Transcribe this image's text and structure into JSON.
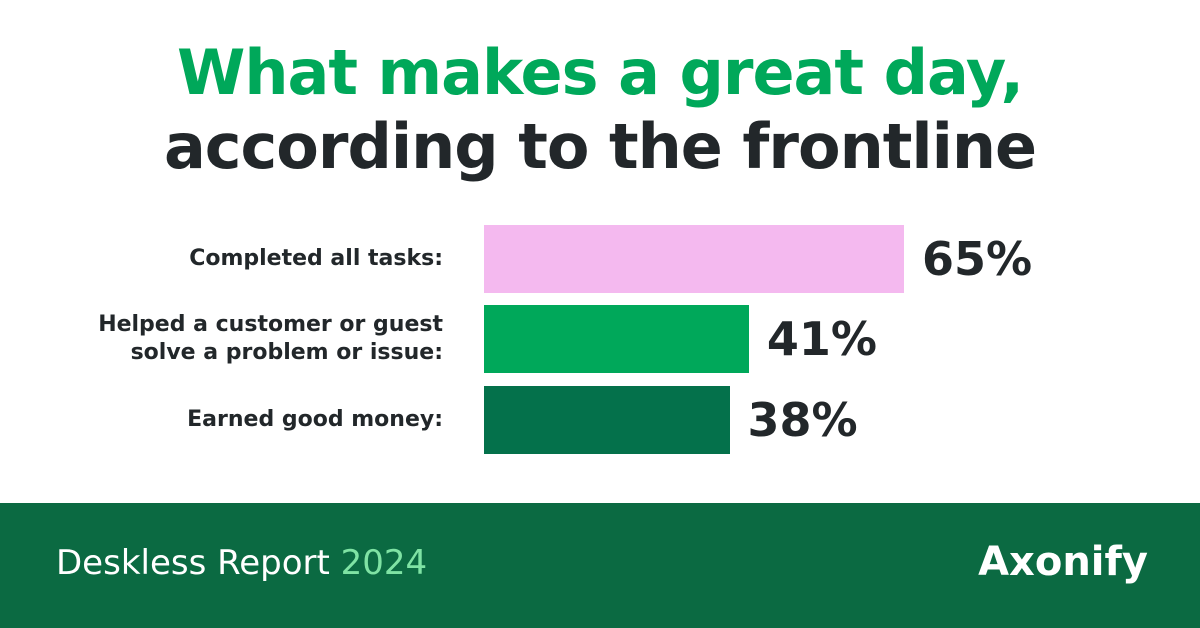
{
  "chart_data": {
    "type": "bar",
    "title": "What makes a great day,",
    "subtitle": "according to the frontline",
    "categories": [
      "Completed all tasks:",
      "Helped a customer or guest solve a problem or issue:",
      "Earned good money:"
    ],
    "values": [
      65,
      41,
      38
    ],
    "value_labels": [
      "65%",
      "41%",
      "38%"
    ],
    "colors": [
      "#f4b9ef",
      "#00a85a",
      "#04714b"
    ]
  },
  "footer": {
    "report": "Deskless Report",
    "year": "2024",
    "brand": "Axonify"
  }
}
